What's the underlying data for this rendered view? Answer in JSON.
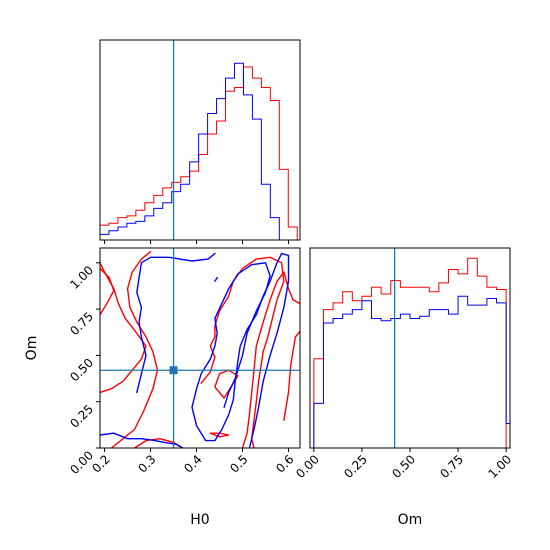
{
  "chart_data": [
    {
      "type": "histogram",
      "panel": "H0 marginal",
      "xlim": [
        0.19,
        0.625
      ],
      "x_ticks": [
        0.2,
        0.3,
        0.4,
        0.5,
        0.6
      ],
      "show_tick_labels": false,
      "truth_x": 0.35,
      "series": [
        {
          "color": "#ff0000",
          "bin_edges": [
            0.19,
            0.2095,
            0.229,
            0.2485,
            0.268,
            0.2875,
            0.307,
            0.3265,
            0.346,
            0.3655,
            0.385,
            0.4045,
            0.424,
            0.4435,
            0.463,
            0.4825,
            0.502,
            0.5215,
            0.541,
            0.5605,
            0.58,
            0.5995,
            0.619
          ],
          "heights": [
            0.08,
            0.09,
            0.12,
            0.13,
            0.16,
            0.2,
            0.24,
            0.28,
            0.31,
            0.34,
            0.37,
            0.46,
            0.57,
            0.64,
            0.8,
            0.82,
            0.93,
            0.87,
            0.82,
            0.75,
            0.38,
            0.07
          ]
        },
        {
          "color": "#0000ff",
          "bin_edges": [
            0.19,
            0.2095,
            0.229,
            0.2485,
            0.268,
            0.2875,
            0.307,
            0.3265,
            0.346,
            0.3655,
            0.385,
            0.4045,
            0.424,
            0.4435,
            0.463,
            0.4825,
            0.502,
            0.5215,
            0.541,
            0.5605,
            0.58,
            0.5995,
            0.619
          ],
          "heights": [
            0.03,
            0.05,
            0.07,
            0.09,
            0.1,
            0.13,
            0.17,
            0.2,
            0.26,
            0.3,
            0.42,
            0.57,
            0.68,
            0.76,
            0.87,
            0.95,
            0.78,
            0.65,
            0.3,
            0.12,
            0,
            0
          ]
        }
      ]
    },
    {
      "type": "contour",
      "panel": "H0 vs Om joint",
      "xlabel": "H0",
      "ylabel": "Om",
      "xlim": [
        0.19,
        0.625
      ],
      "ylim": [
        0.0,
        1.08
      ],
      "x_ticks": [
        0.2,
        0.3,
        0.4,
        0.5,
        0.6
      ],
      "x_tick_labels": [
        "0.2",
        "0.3",
        "0.4",
        "0.5",
        "0.6"
      ],
      "y_ticks": [
        0.0,
        0.25,
        0.5,
        0.75,
        1.0
      ],
      "y_tick_labels": [
        "0.00",
        "0.25",
        "0.50",
        "0.75",
        "1.00"
      ],
      "truth": [
        0.35,
        0.42
      ],
      "series": [
        {
          "color": "#ff0000",
          "contours": [
            [
              [
                0.19,
                0.3
              ],
              [
                0.215,
                0.32
              ],
              [
                0.24,
                0.36
              ],
              [
                0.26,
                0.42
              ],
              [
                0.28,
                0.48
              ],
              [
                0.29,
                0.55
              ],
              [
                0.27,
                0.62
              ],
              [
                0.245,
                0.7
              ],
              [
                0.23,
                0.78
              ],
              [
                0.22,
                0.86
              ],
              [
                0.2,
                0.95
              ],
              [
                0.19,
                1.0
              ]
            ],
            [
              [
                0.19,
                0.72
              ],
              [
                0.205,
                0.78
              ],
              [
                0.22,
                0.85
              ],
              [
                0.21,
                0.92
              ],
              [
                0.19,
                0.97
              ]
            ],
            [
              [
                0.215,
                0.0
              ],
              [
                0.24,
                0.05
              ],
              [
                0.265,
                0.1
              ],
              [
                0.285,
                0.2
              ],
              [
                0.305,
                0.32
              ],
              [
                0.315,
                0.42
              ],
              [
                0.305,
                0.52
              ],
              [
                0.29,
                0.6
              ],
              [
                0.27,
                0.68
              ],
              [
                0.255,
                0.76
              ],
              [
                0.25,
                0.86
              ],
              [
                0.26,
                0.95
              ],
              [
                0.28,
                1.02
              ],
              [
                0.3,
                1.06
              ]
            ],
            [
              [
                0.265,
                0.0
              ],
              [
                0.29,
                0.04
              ],
              [
                0.32,
                0.05
              ],
              [
                0.35,
                0.03
              ],
              [
                0.37,
                0.0
              ]
            ],
            [
              [
                0.43,
                0.08
              ],
              [
                0.45,
                0.06
              ],
              [
                0.47,
                0.07
              ],
              [
                0.45,
                0.08
              ],
              [
                0.43,
                0.08
              ]
            ],
            [
              [
                0.41,
                0.35
              ],
              [
                0.43,
                0.41
              ],
              [
                0.44,
                0.49
              ],
              [
                0.43,
                0.55
              ],
              [
                0.44,
                0.6
              ],
              [
                0.44,
                0.66
              ],
              [
                0.45,
                0.74
              ],
              [
                0.47,
                0.82
              ],
              [
                0.48,
                0.9
              ],
              [
                0.5,
                0.97
              ],
              [
                0.53,
                1.02
              ],
              [
                0.56,
                1.03
              ],
              [
                0.585,
                1.0
              ],
              [
                0.59,
                0.9
              ],
              [
                0.575,
                0.8
              ],
              [
                0.565,
                0.7
              ],
              [
                0.555,
                0.6
              ],
              [
                0.545,
                0.52
              ],
              [
                0.54,
                0.44
              ],
              [
                0.535,
                0.36
              ],
              [
                0.53,
                0.25
              ],
              [
                0.525,
                0.15
              ],
              [
                0.52,
                0.05
              ],
              [
                0.525,
                0.0
              ]
            ],
            [
              [
                0.46,
                0.27
              ],
              [
                0.475,
                0.33
              ],
              [
                0.49,
                0.39
              ],
              [
                0.47,
                0.42
              ],
              [
                0.45,
                0.4
              ],
              [
                0.44,
                0.33
              ],
              [
                0.46,
                0.27
              ]
            ],
            [
              [
                0.5,
                0.0
              ],
              [
                0.51,
                0.08
              ],
              [
                0.515,
                0.18
              ],
              [
                0.52,
                0.3
              ],
              [
                0.525,
                0.42
              ],
              [
                0.53,
                0.55
              ],
              [
                0.545,
                0.68
              ],
              [
                0.56,
                0.8
              ],
              [
                0.575,
                0.9
              ],
              [
                0.59,
                0.95
              ],
              [
                0.6,
                0.86
              ],
              [
                0.61,
                0.8
              ],
              [
                0.625,
                0.78
              ]
            ],
            [
              [
                0.59,
                0.15
              ],
              [
                0.6,
                0.3
              ],
              [
                0.605,
                0.45
              ],
              [
                0.615,
                0.6
              ],
              [
                0.625,
                0.63
              ]
            ]
          ]
        },
        {
          "color": "#0000ff",
          "contours": [
            [
              [
                0.19,
                0.07
              ],
              [
                0.22,
                0.08
              ],
              [
                0.25,
                0.05
              ],
              [
                0.28,
                0.05
              ],
              [
                0.31,
                0.04
              ],
              [
                0.33,
                0.03
              ],
              [
                0.355,
                0.02
              ],
              [
                0.37,
                0.0
              ]
            ],
            [
              [
                0.27,
                0.3
              ],
              [
                0.28,
                0.4
              ],
              [
                0.29,
                0.5
              ],
              [
                0.28,
                0.6
              ],
              [
                0.275,
                0.68
              ],
              [
                0.28,
                0.76
              ],
              [
                0.27,
                0.84
              ],
              [
                0.275,
                0.92
              ],
              [
                0.28,
                1.0
              ],
              [
                0.3,
                1.03
              ],
              [
                0.34,
                1.03
              ],
              [
                0.39,
                1.01
              ],
              [
                0.425,
                1.02
              ],
              [
                0.44,
                1.05
              ]
            ],
            [
              [
                0.39,
                0.22
              ],
              [
                0.4,
                0.32
              ],
              [
                0.41,
                0.4
              ],
              [
                0.43,
                0.48
              ],
              [
                0.44,
                0.55
              ],
              [
                0.445,
                0.62
              ],
              [
                0.44,
                0.7
              ],
              [
                0.455,
                0.78
              ],
              [
                0.47,
                0.86
              ],
              [
                0.49,
                0.94
              ],
              [
                0.52,
                0.99
              ],
              [
                0.55,
                1.0
              ],
              [
                0.56,
                0.93
              ],
              [
                0.55,
                0.84
              ],
              [
                0.53,
                0.74
              ],
              [
                0.51,
                0.62
              ],
              [
                0.5,
                0.5
              ],
              [
                0.485,
                0.38
              ],
              [
                0.48,
                0.26
              ],
              [
                0.47,
                0.18
              ],
              [
                0.455,
                0.1
              ],
              [
                0.44,
                0.04
              ],
              [
                0.42,
                0.04
              ],
              [
                0.4,
                0.12
              ],
              [
                0.39,
                0.22
              ]
            ],
            [
              [
                0.46,
                0.22
              ],
              [
                0.47,
                0.3
              ],
              [
                0.485,
                0.38
              ],
              [
                0.49,
                0.47
              ],
              [
                0.495,
                0.55
              ],
              [
                0.51,
                0.64
              ],
              [
                0.53,
                0.72
              ],
              [
                0.545,
                0.82
              ],
              [
                0.56,
                0.9
              ],
              [
                0.575,
                1.0
              ],
              [
                0.585,
                1.05
              ],
              [
                0.6,
                1.04
              ],
              [
                0.6,
                0.9
              ],
              [
                0.59,
                0.76
              ],
              [
                0.575,
                0.62
              ],
              [
                0.56,
                0.5
              ],
              [
                0.545,
                0.36
              ],
              [
                0.535,
                0.22
              ],
              [
                0.525,
                0.1
              ],
              [
                0.515,
                0.0
              ]
            ],
            [
              [
                0.445,
                0.92
              ],
              [
                0.44,
                0.9
              ]
            ]
          ]
        }
      ]
    },
    {
      "type": "histogram",
      "panel": "Om marginal",
      "xlabel": "Om",
      "xlim": [
        -0.02,
        1.02
      ],
      "x_ticks": [
        0.0,
        0.25,
        0.5,
        0.75,
        1.0
      ],
      "x_tick_labels": [
        "0.00",
        "0.25",
        "0.50",
        "0.75",
        "1.00"
      ],
      "truth_x": 0.42,
      "series": [
        {
          "color": "#ff0000",
          "bin_edges": [
            0.0,
            0.05,
            0.1,
            0.15,
            0.2,
            0.25,
            0.3,
            0.35,
            0.4,
            0.45,
            0.5,
            0.55,
            0.6,
            0.65,
            0.7,
            0.75,
            0.8,
            0.85,
            0.9,
            0.95,
            1.0
          ],
          "heights": [
            0.4,
            0.62,
            0.65,
            0.7,
            0.66,
            0.68,
            0.72,
            0.69,
            0.75,
            0.72,
            0.72,
            0.72,
            0.7,
            0.74,
            0.8,
            0.78,
            0.85,
            0.77,
            0.72,
            0.71
          ]
        },
        {
          "color": "#0000ff",
          "bin_edges": [
            0.0,
            0.05,
            0.1,
            0.15,
            0.2,
            0.25,
            0.3,
            0.35,
            0.4,
            0.45,
            0.5,
            0.55,
            0.6,
            0.65,
            0.7,
            0.75,
            0.8,
            0.85,
            0.9,
            0.95,
            1.0,
            1.05
          ],
          "heights": [
            0.2,
            0.56,
            0.58,
            0.6,
            0.62,
            0.66,
            0.58,
            0.57,
            0.58,
            0.6,
            0.58,
            0.59,
            0.62,
            0.62,
            0.6,
            0.68,
            0.64,
            0.64,
            0.67,
            0.65,
            0.11
          ]
        }
      ]
    }
  ]
}
